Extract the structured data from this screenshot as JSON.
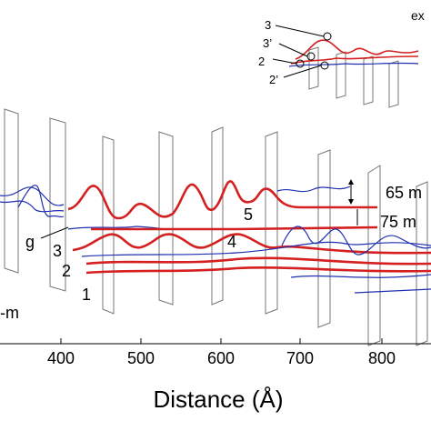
{
  "axis": {
    "label": "Distance (Å)",
    "ticks": [
      "400",
      "500",
      "600",
      "700",
      "800"
    ]
  },
  "labels": {
    "depth_a": "65 m",
    "depth_b": "75 m",
    "g": "g",
    "n1": "1",
    "n2": "2",
    "n3": "3",
    "n4": "4",
    "n5": "5",
    "left": "-m"
  },
  "inset": {
    "corner": "ex",
    "n3": "3",
    "n3p": "3’",
    "n2": "2",
    "n2p": "2’"
  }
}
